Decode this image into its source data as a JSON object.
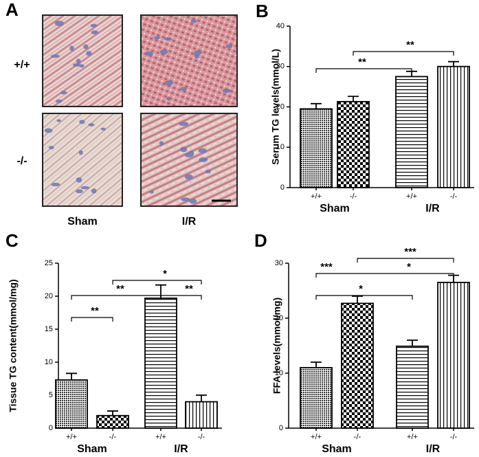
{
  "panel_a": {
    "label": "A",
    "rows": [
      "+/+",
      "-/-"
    ],
    "columns": [
      "Sham",
      "I/R"
    ]
  },
  "chart_data": [
    {
      "type": "bar",
      "panel_label": "B",
      "ylabel": "Serum TG levels(mmol/L)",
      "categories": [
        "+/+",
        "-/-",
        "+/+",
        "-/-"
      ],
      "groups": [
        "Sham",
        "I/R"
      ],
      "values": [
        19.5,
        21.3,
        27.5,
        30.0
      ],
      "errors": [
        1.3,
        1.3,
        1.3,
        1.2
      ],
      "patterns": [
        "dots",
        "checker",
        "hlines",
        "vlines"
      ],
      "color": "#000000",
      "ylim": [
        0,
        40
      ],
      "yticks": [
        0,
        10,
        20,
        30,
        40
      ],
      "annotations": [
        "**",
        "**"
      ]
    },
    {
      "type": "bar",
      "panel_label": "C",
      "ylabel": "Tissue TG content(mmol/mg)",
      "categories": [
        "+/+",
        "-/-",
        "+/+",
        "-/-"
      ],
      "groups": [
        "Sham",
        "I/R"
      ],
      "values": [
        7.3,
        1.9,
        19.7,
        4.0
      ],
      "errors": [
        1.0,
        0.7,
        2.0,
        1.0
      ],
      "patterns": [
        "dots",
        "checker",
        "hlines",
        "vlines"
      ],
      "color": "#000000",
      "ylim": [
        0,
        25
      ],
      "yticks": [
        0,
        5,
        10,
        15,
        20,
        25
      ],
      "annotations": [
        "**",
        "*",
        "**",
        "**"
      ]
    },
    {
      "type": "bar",
      "panel_label": "D",
      "ylabel": "FFA levels(mmol/mg)",
      "categories": [
        "+/+",
        "-/-",
        "+/+",
        "-/-"
      ],
      "groups": [
        "Sham",
        "I/R"
      ],
      "values": [
        11.0,
        22.7,
        14.9,
        26.5
      ],
      "errors": [
        1.0,
        1.3,
        1.1,
        1.3
      ],
      "patterns": [
        "dots",
        "checker",
        "hlines",
        "vlines"
      ],
      "color": "#000000",
      "ylim": [
        0,
        30
      ],
      "yticks": [
        0,
        10,
        20,
        30
      ],
      "annotations": [
        "*",
        "***",
        "*",
        "***"
      ]
    }
  ]
}
